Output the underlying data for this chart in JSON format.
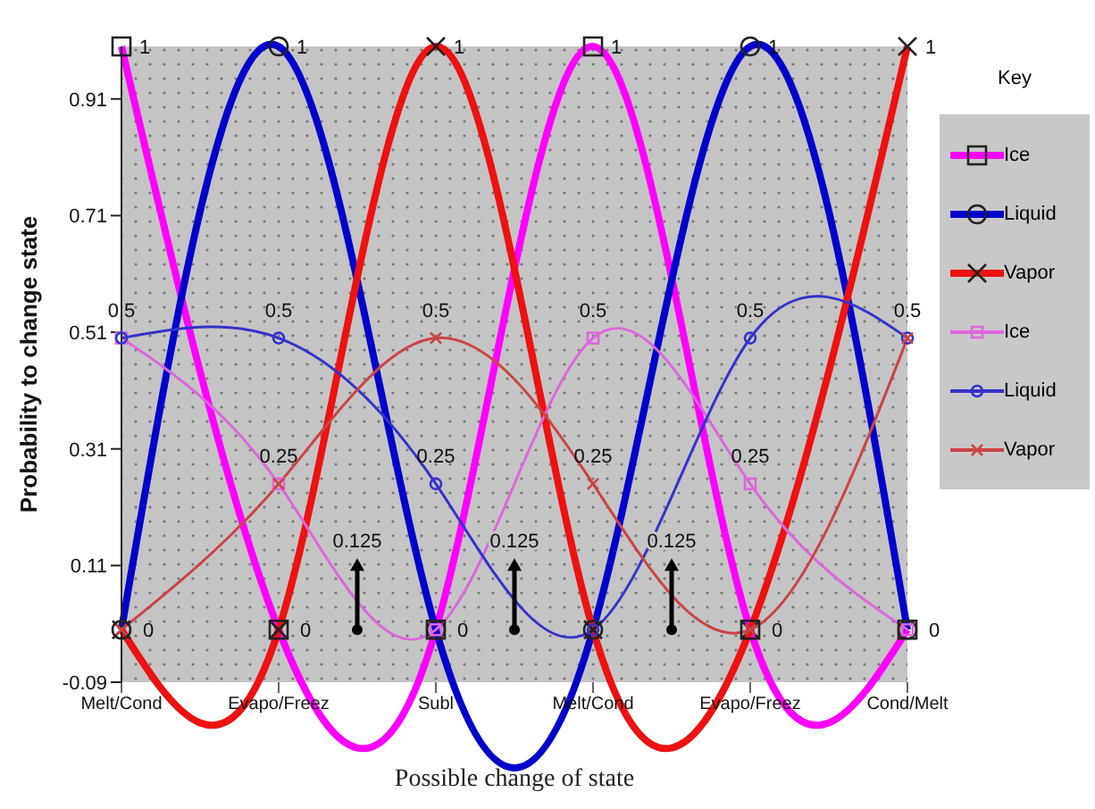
{
  "chart_data": {
    "type": "line",
    "xlabel": "Possible change of state",
    "ylabel": "Probability to change state",
    "legend_title": "Key",
    "categories": [
      "Melt/Cond",
      "Evapo/Freez",
      "Subl",
      "Melt/Cond",
      "Evapo/Freez",
      "Cond/Melt"
    ],
    "ylim": [
      -0.09,
      1
    ],
    "yticks": [
      -0.09,
      0.11,
      0.31,
      0.51,
      0.71,
      0.91
    ],
    "legend": "right",
    "series": [
      {
        "name": "Ice",
        "color": "#ff00ff",
        "marker": "square",
        "values": [
          1,
          0,
          0,
          1,
          0,
          0
        ],
        "value_labels": [
          "1",
          "0",
          "0",
          "1",
          "0",
          "0"
        ]
      },
      {
        "name": "Liquid",
        "color": "#0000cc",
        "marker": "circle",
        "values": [
          0,
          1,
          0,
          0,
          1,
          0
        ],
        "value_labels": [
          "0",
          "1",
          null,
          null,
          "1",
          null
        ]
      },
      {
        "name": "Vapor",
        "color": "#ee1111",
        "marker": "cross",
        "values": [
          0,
          0,
          1,
          0,
          0,
          1
        ],
        "value_labels": [
          null,
          null,
          "1",
          null,
          null,
          "1"
        ]
      },
      {
        "name": "Ice",
        "color": "#dd66dd",
        "marker": "square",
        "values": [
          0.5,
          0.25,
          0,
          0.5,
          0.25,
          0
        ],
        "value_labels": [
          null,
          null,
          null,
          "0.5",
          "0.25",
          null
        ]
      },
      {
        "name": "Liquid",
        "color": "#3333cc",
        "marker": "circle",
        "values": [
          0.5,
          0.5,
          0.25,
          0,
          0.5,
          0.5
        ],
        "value_labels": [
          "0.5",
          "0.5",
          "0.25",
          null,
          "0.5",
          "0.5"
        ]
      },
      {
        "name": "Vapor",
        "color": "#cc4444",
        "marker": "cross",
        "values": [
          0,
          0.25,
          0.5,
          0.25,
          0,
          0.5
        ],
        "value_labels": [
          null,
          "0.25",
          "0.5",
          "0.25",
          null,
          null
        ]
      }
    ],
    "annotations": [
      "0.125",
      "0.125",
      "0.125"
    ]
  }
}
